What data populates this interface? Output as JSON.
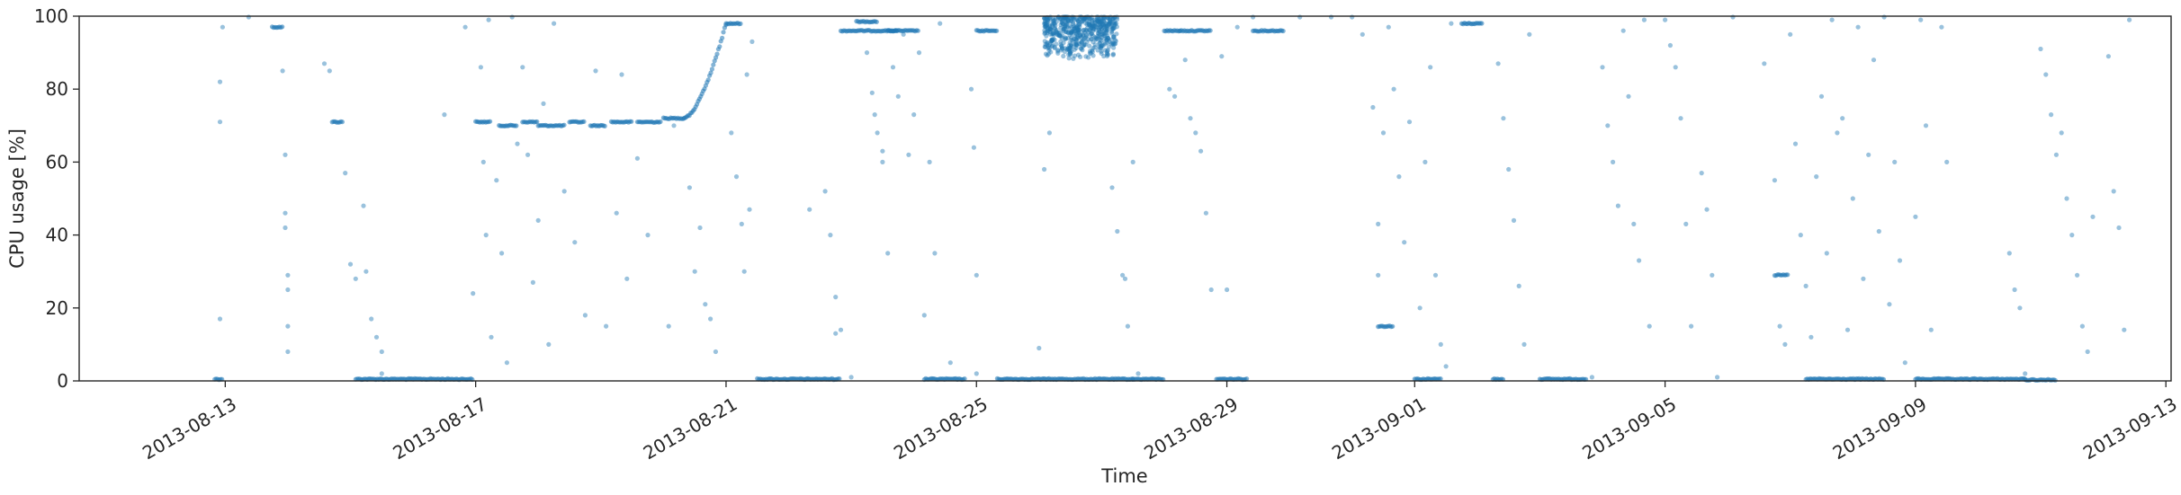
{
  "chart_data": {
    "type": "scatter",
    "title": "",
    "xlabel": "Time",
    "ylabel": "CPU usage [%]",
    "xlim": [
      "2013-08-10T16:00",
      "2013-09-13T02:00"
    ],
    "ylim": [
      0,
      100
    ],
    "x_ticks": [
      "2013-08-13",
      "2013-08-17",
      "2013-08-21",
      "2013-08-25",
      "2013-08-29",
      "2013-09-01",
      "2013-09-05",
      "2013-09-09",
      "2013-09-13"
    ],
    "y_ticks": [
      0,
      20,
      40,
      60,
      80,
      100
    ],
    "grid": false,
    "legend": "none",
    "point_color": "#1f77b4",
    "segments": [
      {
        "start": "2013-08-12T20:00",
        "end": "2013-08-12T23:00",
        "value": 0.5
      },
      {
        "start": "2013-08-13T18:00",
        "end": "2013-08-13T22:00",
        "value": 97
      },
      {
        "start": "2013-08-14T17:00",
        "end": "2013-08-14T21:00",
        "value": 71
      },
      {
        "start": "2013-08-15T02:00",
        "end": "2013-08-16T23:00",
        "value": 0.5
      },
      {
        "start": "2013-08-17T00:00",
        "end": "2013-08-17T06:00",
        "value": 71
      },
      {
        "start": "2013-08-17T09:00",
        "end": "2013-08-17T16:00",
        "value": 70
      },
      {
        "start": "2013-08-17T18:00",
        "end": "2013-08-18T00:00",
        "value": 71
      },
      {
        "start": "2013-08-18T00:00",
        "end": "2013-08-18T10:00",
        "value": 70
      },
      {
        "start": "2013-08-18T12:00",
        "end": "2013-08-18T18:00",
        "value": 71
      },
      {
        "start": "2013-08-18T20:00",
        "end": "2013-08-19T02:00",
        "value": 70
      },
      {
        "start": "2013-08-19T04:00",
        "end": "2013-08-19T12:00",
        "value": 71
      },
      {
        "start": "2013-08-19T14:00",
        "end": "2013-08-19T23:00",
        "value": 71
      },
      {
        "start": "2013-08-20T00:00",
        "end": "2013-08-20T08:00",
        "value": 72
      },
      {
        "start": "2013-08-21T00:00",
        "end": "2013-08-21T06:00",
        "value": 98
      },
      {
        "start": "2013-08-21T12:00",
        "end": "2013-08-22T20:00",
        "value": 0.5
      },
      {
        "start": "2013-08-22T20:00",
        "end": "2013-08-23T18:00",
        "value": 96
      },
      {
        "start": "2013-08-23T02:00",
        "end": "2013-08-23T10:00",
        "value": 98.5
      },
      {
        "start": "2013-08-23T14:00",
        "end": "2013-08-24T02:00",
        "value": 96
      },
      {
        "start": "2013-08-24T04:00",
        "end": "2013-08-24T20:00",
        "value": 0.5
      },
      {
        "start": "2013-08-25T00:00",
        "end": "2013-08-25T08:00",
        "value": 96
      },
      {
        "start": "2013-08-25T08:00",
        "end": "2013-08-27T12:00",
        "value": 0.5
      },
      {
        "start": "2013-08-27T12:00",
        "end": "2013-08-28T00:00",
        "value": 0.5
      },
      {
        "start": "2013-08-28T00:00",
        "end": "2013-08-28T18:00",
        "value": 96
      },
      {
        "start": "2013-08-28T20:00",
        "end": "2013-08-29T08:00",
        "value": 0.5
      },
      {
        "start": "2013-08-29T10:00",
        "end": "2013-08-29T22:00",
        "value": 96
      },
      {
        "start": "2013-08-31T10:00",
        "end": "2013-08-31T16:00",
        "value": 15
      },
      {
        "start": "2013-09-01T00:00",
        "end": "2013-09-01T10:00",
        "value": 0.5
      },
      {
        "start": "2013-09-01T18:00",
        "end": "2013-09-02T02:00",
        "value": 98
      },
      {
        "start": "2013-09-02T06:00",
        "end": "2013-09-02T10:00",
        "value": 0.5
      },
      {
        "start": "2013-09-03T00:00",
        "end": "2013-09-03T18:00",
        "value": 0.5
      },
      {
        "start": "2013-09-06T18:00",
        "end": "2013-09-06T23:00",
        "value": 29
      },
      {
        "start": "2013-09-07T06:00",
        "end": "2013-09-08T12:00",
        "value": 0.5
      },
      {
        "start": "2013-09-09T00:00",
        "end": "2013-09-10T18:00",
        "value": 0.5
      },
      {
        "start": "2013-09-10T18:00",
        "end": "2013-09-11T06:00",
        "value": 0.3
      }
    ],
    "ramp": {
      "start": "2013-08-20T08:00",
      "end": "2013-08-21T00:00",
      "from": 72,
      "to": 98
    },
    "dense_cluster": {
      "start": "2013-08-26T02:00",
      "end": "2013-08-27T06:00",
      "low": 88,
      "high": 100
    },
    "scattered_points": [
      {
        "x": "2013-08-12T22:00",
        "y": 82
      },
      {
        "x": "2013-08-12T22:00",
        "y": 71
      },
      {
        "x": "2013-08-12T22:00",
        "y": 17
      },
      {
        "x": "2013-08-12T23:00",
        "y": 97
      },
      {
        "x": "2013-08-13T09:00",
        "y": 100
      },
      {
        "x": "2013-08-13T22:00",
        "y": 85
      },
      {
        "x": "2013-08-13T23:00",
        "y": 62
      },
      {
        "x": "2013-08-13T23:00",
        "y": 46
      },
      {
        "x": "2013-08-13T23:00",
        "y": 42
      },
      {
        "x": "2013-08-14T00:00",
        "y": 29
      },
      {
        "x": "2013-08-14T00:00",
        "y": 25
      },
      {
        "x": "2013-08-14T00:00",
        "y": 15
      },
      {
        "x": "2013-08-14T00:00",
        "y": 8
      },
      {
        "x": "2013-08-14T14:00",
        "y": 87
      },
      {
        "x": "2013-08-14T16:00",
        "y": 85
      },
      {
        "x": "2013-08-14T22:00",
        "y": 57
      },
      {
        "x": "2013-08-15T00:00",
        "y": 32
      },
      {
        "x": "2013-08-15T02:00",
        "y": 28
      },
      {
        "x": "2013-08-15T05:00",
        "y": 48
      },
      {
        "x": "2013-08-15T06:00",
        "y": 30
      },
      {
        "x": "2013-08-15T08:00",
        "y": 17
      },
      {
        "x": "2013-08-15T10:00",
        "y": 12
      },
      {
        "x": "2013-08-15T12:00",
        "y": 8
      },
      {
        "x": "2013-08-15T12:00",
        "y": 2
      },
      {
        "x": "2013-08-16T12:00",
        "y": 73
      },
      {
        "x": "2013-08-16T20:00",
        "y": 97
      },
      {
        "x": "2013-08-16T23:00",
        "y": 24
      },
      {
        "x": "2013-08-17T02:00",
        "y": 86
      },
      {
        "x": "2013-08-17T03:00",
        "y": 60
      },
      {
        "x": "2013-08-17T04:00",
        "y": 40
      },
      {
        "x": "2013-08-17T05:00",
        "y": 99
      },
      {
        "x": "2013-08-17T06:00",
        "y": 12
      },
      {
        "x": "2013-08-17T08:00",
        "y": 55
      },
      {
        "x": "2013-08-17T10:00",
        "y": 35
      },
      {
        "x": "2013-08-17T12:00",
        "y": 5
      },
      {
        "x": "2013-08-17T14:00",
        "y": 100
      },
      {
        "x": "2013-08-17T16:00",
        "y": 65
      },
      {
        "x": "2013-08-17T18:00",
        "y": 86
      },
      {
        "x": "2013-08-17T20:00",
        "y": 62
      },
      {
        "x": "2013-08-17T22:00",
        "y": 27
      },
      {
        "x": "2013-08-18T00:00",
        "y": 44
      },
      {
        "x": "2013-08-18T02:00",
        "y": 76
      },
      {
        "x": "2013-08-18T04:00",
        "y": 10
      },
      {
        "x": "2013-08-18T06:00",
        "y": 98
      },
      {
        "x": "2013-08-18T10:00",
        "y": 52
      },
      {
        "x": "2013-08-18T14:00",
        "y": 38
      },
      {
        "x": "2013-08-18T18:00",
        "y": 18
      },
      {
        "x": "2013-08-18T22:00",
        "y": 85
      },
      {
        "x": "2013-08-19T02:00",
        "y": 15
      },
      {
        "x": "2013-08-19T06:00",
        "y": 46
      },
      {
        "x": "2013-08-19T08:00",
        "y": 84
      },
      {
        "x": "2013-08-19T10:00",
        "y": 28
      },
      {
        "x": "2013-08-19T14:00",
        "y": 61
      },
      {
        "x": "2013-08-19T18:00",
        "y": 40
      },
      {
        "x": "2013-08-20T02:00",
        "y": 15
      },
      {
        "x": "2013-08-20T04:00",
        "y": 70
      },
      {
        "x": "2013-08-20T10:00",
        "y": 53
      },
      {
        "x": "2013-08-20T12:00",
        "y": 30
      },
      {
        "x": "2013-08-20T14:00",
        "y": 42
      },
      {
        "x": "2013-08-20T16:00",
        "y": 21
      },
      {
        "x": "2013-08-20T18:00",
        "y": 17
      },
      {
        "x": "2013-08-20T20:00",
        "y": 8
      },
      {
        "x": "2013-08-21T02:00",
        "y": 68
      },
      {
        "x": "2013-08-21T04:00",
        "y": 56
      },
      {
        "x": "2013-08-21T06:00",
        "y": 43
      },
      {
        "x": "2013-08-21T07:00",
        "y": 30
      },
      {
        "x": "2013-08-21T08:00",
        "y": 84
      },
      {
        "x": "2013-08-21T09:00",
        "y": 47
      },
      {
        "x": "2013-08-21T10:00",
        "y": 93
      },
      {
        "x": "2013-08-22T08:00",
        "y": 47
      },
      {
        "x": "2013-08-22T14:00",
        "y": 52
      },
      {
        "x": "2013-08-22T16:00",
        "y": 40
      },
      {
        "x": "2013-08-22T18:00",
        "y": 23
      },
      {
        "x": "2013-08-22T18:00",
        "y": 13
      },
      {
        "x": "2013-08-22T20:00",
        "y": 14
      },
      {
        "x": "2013-08-23T00:00",
        "y": 1
      },
      {
        "x": "2013-08-23T06:00",
        "y": 90
      },
      {
        "x": "2013-08-23T08:00",
        "y": 79
      },
      {
        "x": "2013-08-23T09:00",
        "y": 73
      },
      {
        "x": "2013-08-23T10:00",
        "y": 68
      },
      {
        "x": "2013-08-23T12:00",
        "y": 60
      },
      {
        "x": "2013-08-23T12:00",
        "y": 63
      },
      {
        "x": "2013-08-23T14:00",
        "y": 35
      },
      {
        "x": "2013-08-23T16:00",
        "y": 86
      },
      {
        "x": "2013-08-23T18:00",
        "y": 78
      },
      {
        "x": "2013-08-23T20:00",
        "y": 95
      },
      {
        "x": "2013-08-23T22:00",
        "y": 62
      },
      {
        "x": "2013-08-24T00:00",
        "y": 73
      },
      {
        "x": "2013-08-24T02:00",
        "y": 90
      },
      {
        "x": "2013-08-24T04:00",
        "y": 18
      },
      {
        "x": "2013-08-24T06:00",
        "y": 60
      },
      {
        "x": "2013-08-24T08:00",
        "y": 35
      },
      {
        "x": "2013-08-24T10:00",
        "y": 98
      },
      {
        "x": "2013-08-24T14:00",
        "y": 5
      },
      {
        "x": "2013-08-24T22:00",
        "y": 80
      },
      {
        "x": "2013-08-24T23:00",
        "y": 64
      },
      {
        "x": "2013-08-25T00:00",
        "y": 29
      },
      {
        "x": "2013-08-25T00:00",
        "y": 2
      },
      {
        "x": "2013-08-26T00:00",
        "y": 9
      },
      {
        "x": "2013-08-26T02:00",
        "y": 58
      },
      {
        "x": "2013-08-26T04:00",
        "y": 68
      },
      {
        "x": "2013-08-27T02:00",
        "y": 96
      },
      {
        "x": "2013-08-27T04:00",
        "y": 53
      },
      {
        "x": "2013-08-27T06:00",
        "y": 41
      },
      {
        "x": "2013-08-27T08:00",
        "y": 29
      },
      {
        "x": "2013-08-27T09:00",
        "y": 28
      },
      {
        "x": "2013-08-27T10:00",
        "y": 15
      },
      {
        "x": "2013-08-27T12:00",
        "y": 60
      },
      {
        "x": "2013-08-27T14:00",
        "y": 2
      },
      {
        "x": "2013-08-28T02:00",
        "y": 80
      },
      {
        "x": "2013-08-28T04:00",
        "y": 78
      },
      {
        "x": "2013-08-28T06:00",
        "y": 96
      },
      {
        "x": "2013-08-28T08:00",
        "y": 88
      },
      {
        "x": "2013-08-28T10:00",
        "y": 72
      },
      {
        "x": "2013-08-28T12:00",
        "y": 68
      },
      {
        "x": "2013-08-28T14:00",
        "y": 63
      },
      {
        "x": "2013-08-28T16:00",
        "y": 46
      },
      {
        "x": "2013-08-28T18:00",
        "y": 25
      },
      {
        "x": "2013-08-28T22:00",
        "y": 89
      },
      {
        "x": "2013-08-29T00:00",
        "y": 25
      },
      {
        "x": "2013-08-29T04:00",
        "y": 97
      },
      {
        "x": "2013-08-29T10:00",
        "y": 100
      },
      {
        "x": "2013-08-30T04:00",
        "y": 100
      },
      {
        "x": "2013-08-30T16:00",
        "y": 100
      },
      {
        "x": "2013-08-31T00:00",
        "y": 100
      },
      {
        "x": "2013-08-31T04:00",
        "y": 95
      },
      {
        "x": "2013-08-31T08:00",
        "y": 75
      },
      {
        "x": "2013-08-31T10:00",
        "y": 43
      },
      {
        "x": "2013-08-31T10:00",
        "y": 29
      },
      {
        "x": "2013-08-31T12:00",
        "y": 68
      },
      {
        "x": "2013-08-31T14:00",
        "y": 97
      },
      {
        "x": "2013-08-31T16:00",
        "y": 80
      },
      {
        "x": "2013-08-31T18:00",
        "y": 56
      },
      {
        "x": "2013-08-31T20:00",
        "y": 38
      },
      {
        "x": "2013-08-31T22:00",
        "y": 71
      },
      {
        "x": "2013-09-01T02:00",
        "y": 20
      },
      {
        "x": "2013-09-01T04:00",
        "y": 60
      },
      {
        "x": "2013-09-01T06:00",
        "y": 86
      },
      {
        "x": "2013-09-01T08:00",
        "y": 29
      },
      {
        "x": "2013-09-01T10:00",
        "y": 10
      },
      {
        "x": "2013-09-01T12:00",
        "y": 4
      },
      {
        "x": "2013-09-01T14:00",
        "y": 98
      },
      {
        "x": "2013-09-02T08:00",
        "y": 87
      },
      {
        "x": "2013-09-02T10:00",
        "y": 72
      },
      {
        "x": "2013-09-02T12:00",
        "y": 58
      },
      {
        "x": "2013-09-02T14:00",
        "y": 44
      },
      {
        "x": "2013-09-02T16:00",
        "y": 26
      },
      {
        "x": "2013-09-02T18:00",
        "y": 10
      },
      {
        "x": "2013-09-02T20:00",
        "y": 95
      },
      {
        "x": "2013-09-03T20:00",
        "y": 1
      },
      {
        "x": "2013-09-04T00:00",
        "y": 86
      },
      {
        "x": "2013-09-04T02:00",
        "y": 70
      },
      {
        "x": "2013-09-04T04:00",
        "y": 60
      },
      {
        "x": "2013-09-04T06:00",
        "y": 48
      },
      {
        "x": "2013-09-04T08:00",
        "y": 96
      },
      {
        "x": "2013-09-04T10:00",
        "y": 78
      },
      {
        "x": "2013-09-04T12:00",
        "y": 43
      },
      {
        "x": "2013-09-04T14:00",
        "y": 33
      },
      {
        "x": "2013-09-04T16:00",
        "y": 99
      },
      {
        "x": "2013-09-04T18:00",
        "y": 15
      },
      {
        "x": "2013-09-05T00:00",
        "y": 99
      },
      {
        "x": "2013-09-05T02:00",
        "y": 92
      },
      {
        "x": "2013-09-05T04:00",
        "y": 86
      },
      {
        "x": "2013-09-05T06:00",
        "y": 72
      },
      {
        "x": "2013-09-05T08:00",
        "y": 43
      },
      {
        "x": "2013-09-05T10:00",
        "y": 15
      },
      {
        "x": "2013-09-05T14:00",
        "y": 57
      },
      {
        "x": "2013-09-05T16:00",
        "y": 47
      },
      {
        "x": "2013-09-05T18:00",
        "y": 29
      },
      {
        "x": "2013-09-05T20:00",
        "y": 1
      },
      {
        "x": "2013-09-06T02:00",
        "y": 100
      },
      {
        "x": "2013-09-06T14:00",
        "y": 87
      },
      {
        "x": "2013-09-06T18:00",
        "y": 55
      },
      {
        "x": "2013-09-06T20:00",
        "y": 15
      },
      {
        "x": "2013-09-06T22:00",
        "y": 10
      },
      {
        "x": "2013-09-07T00:00",
        "y": 95
      },
      {
        "x": "2013-09-07T02:00",
        "y": 65
      },
      {
        "x": "2013-09-07T04:00",
        "y": 40
      },
      {
        "x": "2013-09-07T06:00",
        "y": 26
      },
      {
        "x": "2013-09-07T08:00",
        "y": 12
      },
      {
        "x": "2013-09-07T10:00",
        "y": 56
      },
      {
        "x": "2013-09-07T12:00",
        "y": 78
      },
      {
        "x": "2013-09-07T14:00",
        "y": 35
      },
      {
        "x": "2013-09-07T16:00",
        "y": 99
      },
      {
        "x": "2013-09-07T18:00",
        "y": 68
      },
      {
        "x": "2013-09-07T20:00",
        "y": 72
      },
      {
        "x": "2013-09-07T22:00",
        "y": 14
      },
      {
        "x": "2013-09-08T00:00",
        "y": 50
      },
      {
        "x": "2013-09-08T02:00",
        "y": 97
      },
      {
        "x": "2013-09-08T04:00",
        "y": 28
      },
      {
        "x": "2013-09-08T06:00",
        "y": 62
      },
      {
        "x": "2013-09-08T08:00",
        "y": 88
      },
      {
        "x": "2013-09-08T10:00",
        "y": 41
      },
      {
        "x": "2013-09-08T12:00",
        "y": 100
      },
      {
        "x": "2013-09-08T14:00",
        "y": 21
      },
      {
        "x": "2013-09-08T16:00",
        "y": 60
      },
      {
        "x": "2013-09-08T18:00",
        "y": 33
      },
      {
        "x": "2013-09-08T20:00",
        "y": 5
      },
      {
        "x": "2013-09-09T00:00",
        "y": 45
      },
      {
        "x": "2013-09-09T02:00",
        "y": 99
      },
      {
        "x": "2013-09-09T04:00",
        "y": 70
      },
      {
        "x": "2013-09-09T06:00",
        "y": 14
      },
      {
        "x": "2013-09-09T10:00",
        "y": 97
      },
      {
        "x": "2013-09-09T12:00",
        "y": 60
      },
      {
        "x": "2013-09-10T12:00",
        "y": 35
      },
      {
        "x": "2013-09-10T14:00",
        "y": 25
      },
      {
        "x": "2013-09-10T16:00",
        "y": 20
      },
      {
        "x": "2013-09-10T18:00",
        "y": 2
      },
      {
        "x": "2013-09-11T00:00",
        "y": 91
      },
      {
        "x": "2013-09-11T02:00",
        "y": 84
      },
      {
        "x": "2013-09-11T04:00",
        "y": 73
      },
      {
        "x": "2013-09-11T06:00",
        "y": 62
      },
      {
        "x": "2013-09-11T08:00",
        "y": 68
      },
      {
        "x": "2013-09-11T10:00",
        "y": 50
      },
      {
        "x": "2013-09-11T12:00",
        "y": 40
      },
      {
        "x": "2013-09-11T14:00",
        "y": 29
      },
      {
        "x": "2013-09-11T16:00",
        "y": 15
      },
      {
        "x": "2013-09-11T18:00",
        "y": 8
      },
      {
        "x": "2013-09-11T20:00",
        "y": 45
      },
      {
        "x": "2013-09-12T02:00",
        "y": 89
      },
      {
        "x": "2013-09-12T04:00",
        "y": 52
      },
      {
        "x": "2013-09-12T06:00",
        "y": 42
      },
      {
        "x": "2013-09-12T08:00",
        "y": 14
      },
      {
        "x": "2013-09-12T10:00",
        "y": 99
      }
    ]
  }
}
